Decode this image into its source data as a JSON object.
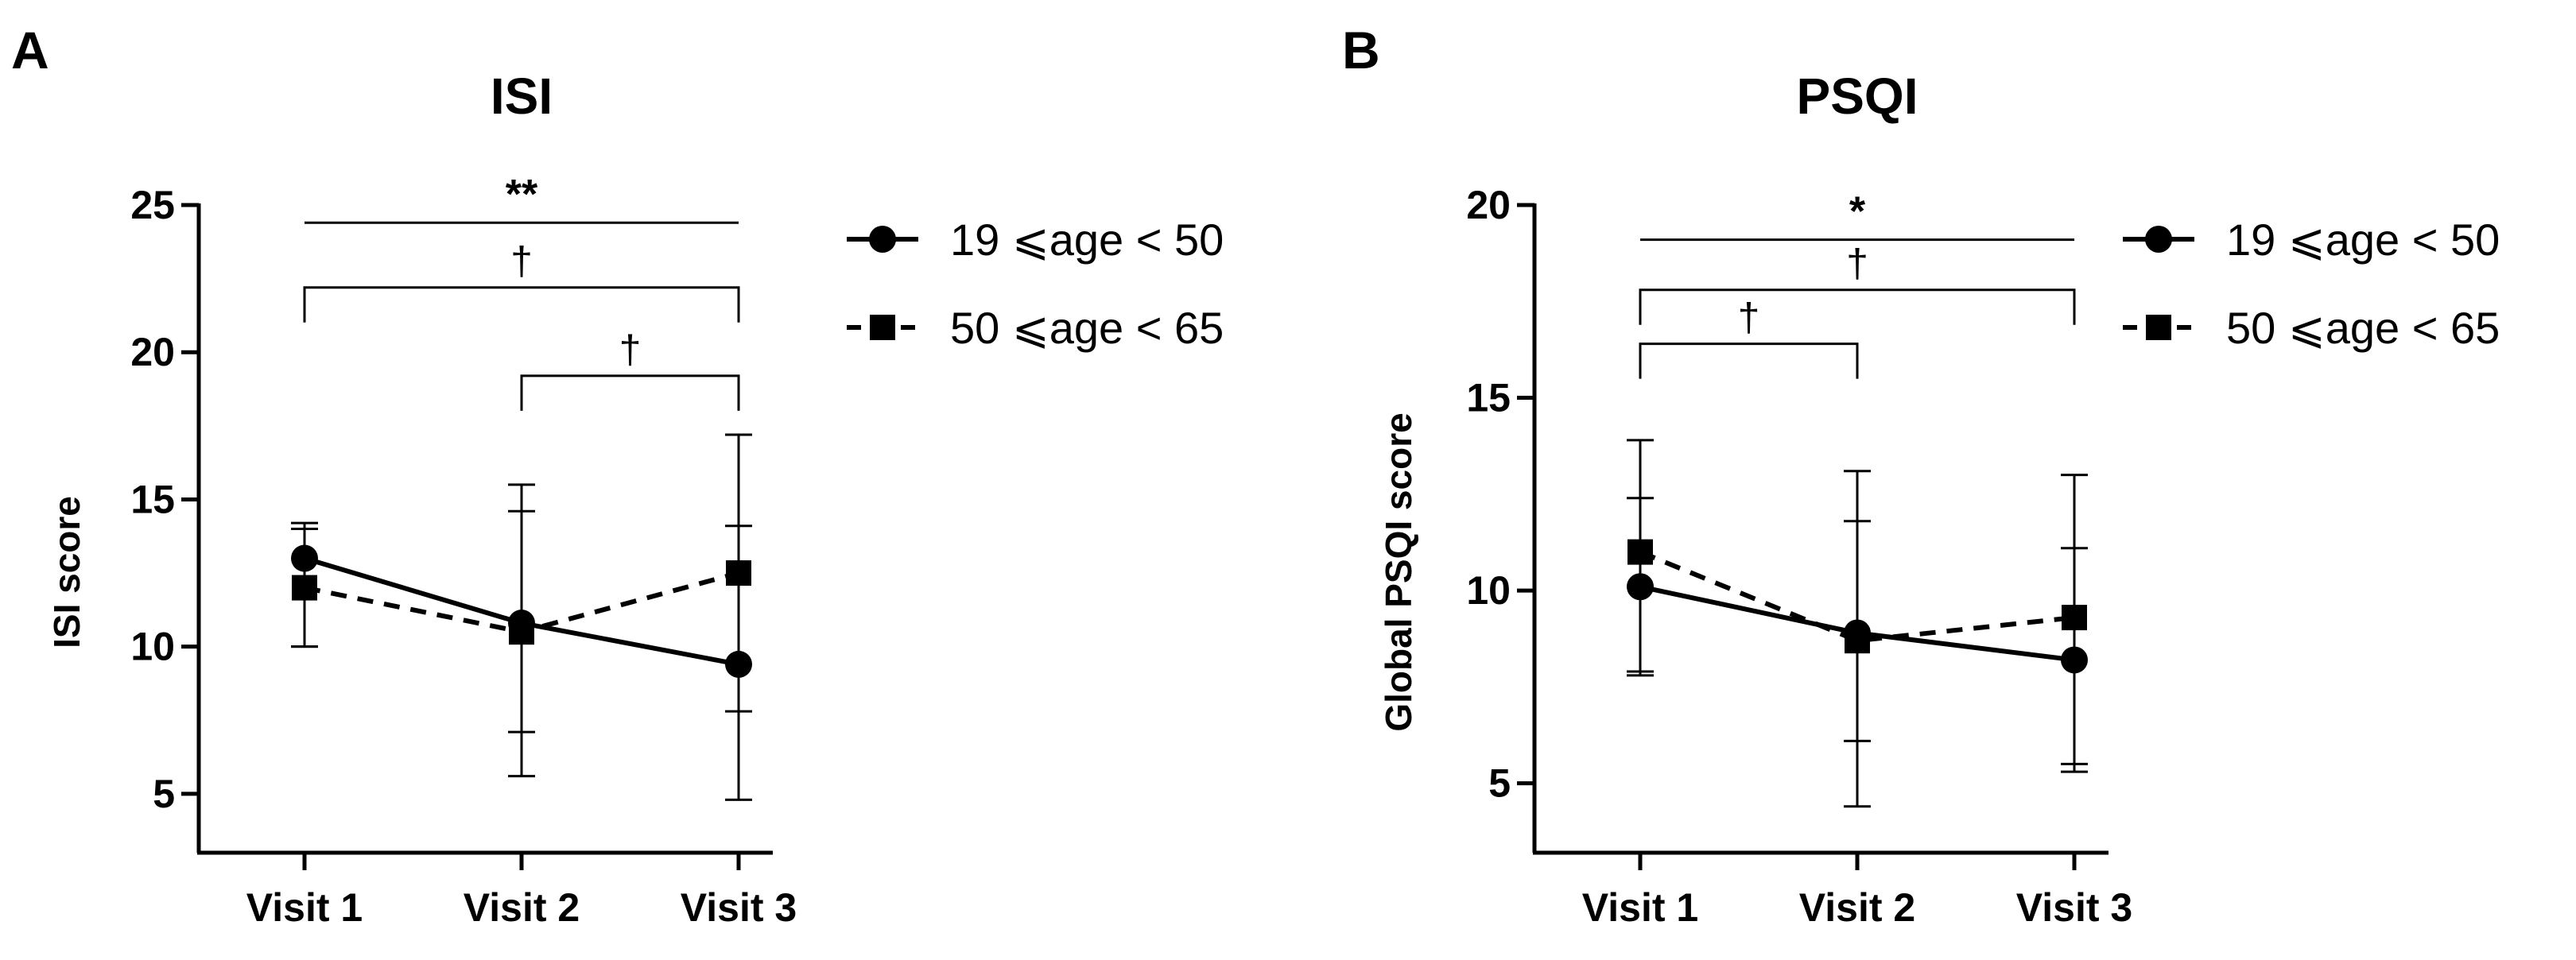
{
  "chart_data": [
    {
      "type": "line",
      "panel_label": "A",
      "title": "ISI",
      "xlabel": "",
      "ylabel": "ISI score",
      "categories": [
        "Visit 1",
        "Visit 2",
        "Visit 3"
      ],
      "ylim": [
        3,
        25
      ],
      "yticks": [
        5,
        10,
        15,
        20,
        25
      ],
      "series": [
        {
          "name": "19 ⩽age < 50",
          "marker": "circle",
          "line": "solid",
          "values": [
            13.0,
            10.8,
            9.4
          ],
          "err_low": [
            10.0,
            5.6,
            4.8
          ],
          "err_high": [
            14.2,
            14.6,
            14.1
          ]
        },
        {
          "name": "50 ⩽age < 65",
          "marker": "square",
          "line": "dashed",
          "values": [
            12.0,
            10.5,
            12.5
          ],
          "err_low": [
            10.0,
            7.1,
            7.8
          ],
          "err_high": [
            14.0,
            15.5,
            17.2
          ]
        }
      ],
      "annotations": [
        {
          "type": "line",
          "from": 0,
          "to": 2,
          "level": 24.4,
          "label": "**",
          "bold": true
        },
        {
          "type": "bracket",
          "from": 0,
          "to": 2,
          "level": 22.2,
          "label": "†"
        },
        {
          "type": "bracket",
          "from": 1,
          "to": 2,
          "level": 19.2,
          "label": "†"
        }
      ]
    },
    {
      "type": "line",
      "panel_label": "B",
      "title": "PSQI",
      "xlabel": "",
      "ylabel": "Global PSQI score",
      "categories": [
        "Visit 1",
        "Visit 2",
        "Visit 3"
      ],
      "ylim": [
        3.2,
        20
      ],
      "yticks": [
        5,
        10,
        15,
        20
      ],
      "series": [
        {
          "name": "19 ⩽age < 50",
          "marker": "circle",
          "line": "solid",
          "values": [
            10.1,
            8.9,
            8.2
          ],
          "err_low": [
            7.9,
            4.4,
            5.3
          ],
          "err_high": [
            13.9,
            13.1,
            13.0
          ]
        },
        {
          "name": "50 ⩽age < 65",
          "marker": "square",
          "line": "dashed",
          "values": [
            11.0,
            8.7,
            9.3
          ],
          "err_low": [
            7.8,
            6.1,
            5.5
          ],
          "err_high": [
            12.4,
            11.8,
            11.1
          ]
        }
      ],
      "annotations": [
        {
          "type": "line",
          "from": 0,
          "to": 2,
          "level": 19.1,
          "label": "*",
          "bold": true
        },
        {
          "type": "bracket",
          "from": 0,
          "to": 2,
          "level": 17.8,
          "label": "†"
        },
        {
          "type": "bracket",
          "from": 0,
          "to": 1,
          "level": 16.4,
          "label": "†"
        }
      ]
    }
  ]
}
